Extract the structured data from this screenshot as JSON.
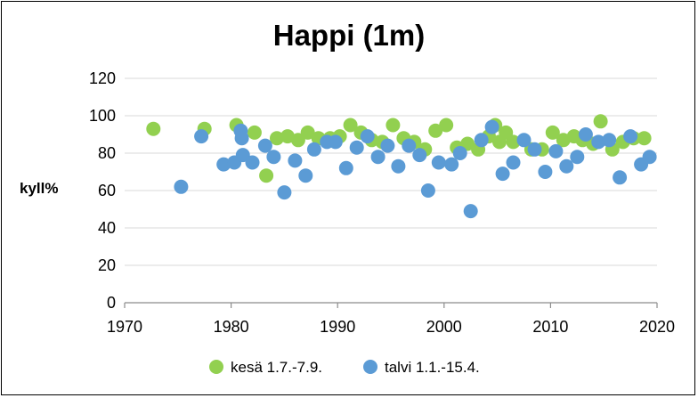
{
  "chart_data": {
    "type": "scatter",
    "title": "Happi (1m)",
    "xlabel": "",
    "ylabel": "kyll%",
    "xlim": [
      1970,
      2020
    ],
    "ylim": [
      0,
      120
    ],
    "x_ticks": [
      "1970",
      "1980",
      "1990",
      "2000",
      "2010",
      "2020"
    ],
    "y_ticks": [
      "0",
      "20",
      "40",
      "60",
      "80",
      "100",
      "120"
    ],
    "grid": "horizontal",
    "legend_position": "bottom",
    "series": [
      {
        "name": "kesä 1.7.-7.9.",
        "color": "#92D050",
        "points": [
          [
            1972.7,
            93
          ],
          [
            1977.5,
            93
          ],
          [
            1980.5,
            95
          ],
          [
            1982.2,
            91
          ],
          [
            1983.3,
            68
          ],
          [
            1984.3,
            88
          ],
          [
            1985.3,
            89
          ],
          [
            1986.3,
            87
          ],
          [
            1987.2,
            91
          ],
          [
            1988.2,
            88
          ],
          [
            1989.3,
            88
          ],
          [
            1990.2,
            89
          ],
          [
            1991.2,
            95
          ],
          [
            1992.2,
            91
          ],
          [
            1993.2,
            87
          ],
          [
            1994.2,
            86
          ],
          [
            1995.2,
            95
          ],
          [
            1996.2,
            88
          ],
          [
            1997.2,
            86
          ],
          [
            1998.2,
            82
          ],
          [
            1999.2,
            92
          ],
          [
            2000.2,
            95
          ],
          [
            2001.2,
            83
          ],
          [
            2002.2,
            85
          ],
          [
            2003.2,
            82
          ],
          [
            2004.2,
            89
          ],
          [
            2004.8,
            95
          ],
          [
            2005.2,
            86
          ],
          [
            2005.8,
            91
          ],
          [
            2006.5,
            86
          ],
          [
            2008.2,
            82
          ],
          [
            2009.2,
            82
          ],
          [
            2010.2,
            91
          ],
          [
            2011.2,
            87
          ],
          [
            2012.2,
            89
          ],
          [
            2013.0,
            87
          ],
          [
            2014.0,
            85
          ],
          [
            2014.7,
            97
          ],
          [
            2015.8,
            82
          ],
          [
            2016.8,
            86
          ],
          [
            2017.8,
            88
          ],
          [
            2018.8,
            88
          ]
        ]
      },
      {
        "name": "talvi 1.1.-15.4.",
        "color": "#5B9BD5",
        "points": [
          [
            1975.3,
            62
          ],
          [
            1977.2,
            89
          ],
          [
            1979.3,
            74
          ],
          [
            1980.3,
            75
          ],
          [
            1980.9,
            92
          ],
          [
            1981.0,
            88
          ],
          [
            1981.1,
            79
          ],
          [
            1982.0,
            75
          ],
          [
            1983.2,
            84
          ],
          [
            1984.0,
            78
          ],
          [
            1985.0,
            59
          ],
          [
            1986.0,
            76
          ],
          [
            1987.0,
            68
          ],
          [
            1987.8,
            82
          ],
          [
            1989.0,
            86
          ],
          [
            1989.8,
            86
          ],
          [
            1990.8,
            72
          ],
          [
            1991.8,
            83
          ],
          [
            1992.8,
            89
          ],
          [
            1993.8,
            78
          ],
          [
            1994.7,
            84
          ],
          [
            1995.7,
            73
          ],
          [
            1996.7,
            84
          ],
          [
            1997.7,
            79
          ],
          [
            1998.5,
            60
          ],
          [
            1999.5,
            75
          ],
          [
            2000.7,
            74
          ],
          [
            2001.5,
            80
          ],
          [
            2002.5,
            49
          ],
          [
            2003.5,
            87
          ],
          [
            2004.5,
            94
          ],
          [
            2005.5,
            69
          ],
          [
            2006.5,
            75
          ],
          [
            2007.5,
            87
          ],
          [
            2008.5,
            82
          ],
          [
            2009.5,
            70
          ],
          [
            2010.5,
            81
          ],
          [
            2011.5,
            73
          ],
          [
            2012.5,
            78
          ],
          [
            2013.3,
            90
          ],
          [
            2014.5,
            86
          ],
          [
            2015.5,
            87
          ],
          [
            2016.5,
            67
          ],
          [
            2017.5,
            89
          ],
          [
            2018.5,
            74
          ],
          [
            2019.3,
            78
          ]
        ]
      }
    ]
  }
}
